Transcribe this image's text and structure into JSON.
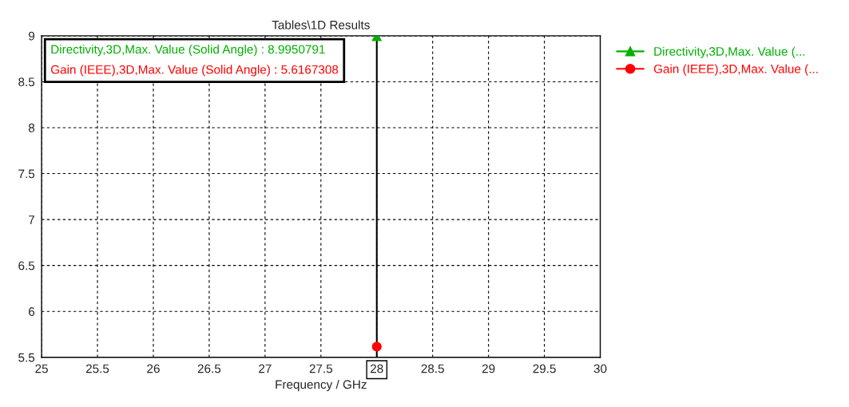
{
  "chart_data": {
    "type": "line",
    "title": "Tables\\1D Results",
    "xlabel": "Frequency / GHz",
    "series": [
      {
        "name": "Directivity,3D,Max. Value (...",
        "color": "#00b000",
        "x": [
          28
        ],
        "values": [
          8.9950791
        ],
        "marker": "triangle"
      },
      {
        "name": "Gain (IEEE),3D,Max. Value (...",
        "color": "#ff0000",
        "x": [
          28
        ],
        "values": [
          5.6167308
        ],
        "marker": "circle"
      }
    ],
    "annotations": [
      "Directivity,3D,Max. Value (Solid Angle) : 8.9950791",
      "Gain (IEEE),3D,Max. Value (Solid Angle) : 5.6167308"
    ],
    "ref_lines": [
      {
        "axis": "x",
        "value": 28,
        "color": "#000000"
      }
    ],
    "xlim": [
      25,
      30
    ],
    "xticks": [
      25,
      25.5,
      26,
      26.5,
      27,
      27.5,
      28,
      28.5,
      29,
      29.5,
      30
    ],
    "ylim": [
      5.5,
      9
    ],
    "yticks": [
      5.5,
      6,
      6.5,
      7,
      7.5,
      8,
      8.5,
      9
    ],
    "grid": true,
    "legend": "top right",
    "line_style": "solid"
  }
}
